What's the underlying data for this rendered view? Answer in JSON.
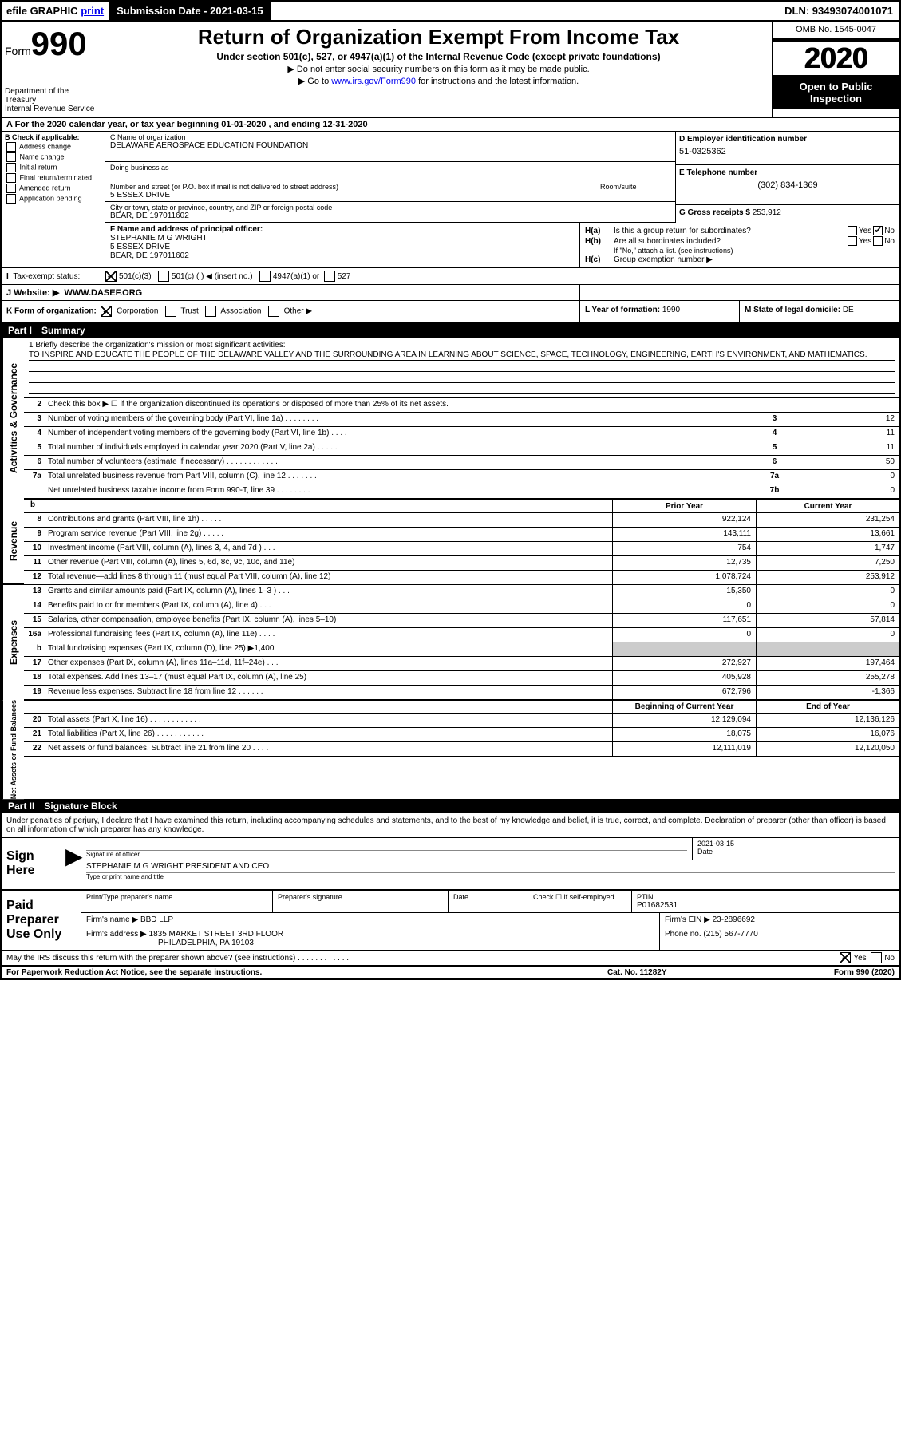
{
  "topbar": {
    "efile": "efile GRAPHIC",
    "print": "print",
    "submission": "Submission Date - 2021-03-15",
    "dln": "DLN: 93493074001071"
  },
  "header": {
    "form_prefix": "Form",
    "form_num": "990",
    "dept": "Department of the Treasury",
    "irs": "Internal Revenue Service",
    "title": "Return of Organization Exempt From Income Tax",
    "sub": "Under section 501(c), 527, or 4947(a)(1) of the Internal Revenue Code (except private foundations)",
    "instr1": "▶ Do not enter social security numbers on this form as it may be made public.",
    "instr2_pre": "▶ Go to ",
    "instr2_link": "www.irs.gov/Form990",
    "instr2_post": " for instructions and the latest information.",
    "omb": "OMB No. 1545-0047",
    "year": "2020",
    "inspection": "Open to Public Inspection"
  },
  "period": "A For the 2020 calendar year, or tax year beginning 01-01-2020    , and ending 12-31-2020",
  "b": {
    "lbl": "B Check if applicable:",
    "opts": [
      "Address change",
      "Name change",
      "Initial return",
      "Final return/terminated",
      "Amended return",
      "Application pending"
    ]
  },
  "c": {
    "name_lbl": "C Name of organization",
    "name": "DELAWARE AEROSPACE EDUCATION FOUNDATION",
    "dba_lbl": "Doing business as",
    "addr_lbl": "Number and street (or P.O. box if mail is not delivered to street address)",
    "addr": "5 ESSEX DRIVE",
    "room_lbl": "Room/suite",
    "city_lbl": "City or town, state or province, country, and ZIP or foreign postal code",
    "city": "BEAR, DE  197011602"
  },
  "d": {
    "lbl": "D Employer identification number",
    "val": "51-0325362"
  },
  "e": {
    "lbl": "E Telephone number",
    "val": "(302) 834-1369"
  },
  "g": {
    "lbl": "G Gross receipts $",
    "val": "253,912"
  },
  "f": {
    "lbl": "F Name and address of principal officer:",
    "name": "STEPHANIE M G WRIGHT",
    "addr1": "5 ESSEX DRIVE",
    "addr2": "BEAR, DE  197011602"
  },
  "h": {
    "a": "Is this a group return for subordinates?",
    "b": "Are all subordinates included?",
    "b_note": "If \"No,\" attach a list. (see instructions)",
    "c": "Group exemption number ▶"
  },
  "i": {
    "lbl": "Tax-exempt status:",
    "opts": [
      "501(c)(3)",
      "501(c) (  ) ◀ (insert no.)",
      "4947(a)(1) or",
      "527"
    ]
  },
  "j": {
    "lbl": "J  Website: ▶",
    "val": "WWW.DASEF.ORG"
  },
  "k": {
    "lbl": "K Form of organization:",
    "opts": [
      "Corporation",
      "Trust",
      "Association",
      "Other ▶"
    ]
  },
  "l": {
    "lbl": "L Year of formation:",
    "val": "1990"
  },
  "m": {
    "lbl": "M State of legal domicile:",
    "val": "DE"
  },
  "part1": {
    "num": "Part I",
    "title": "Summary",
    "mission_lbl": "1  Briefly describe the organization's mission or most significant activities:",
    "mission": "TO INSPIRE AND EDUCATE THE PEOPLE OF THE DELAWARE VALLEY AND THE SURROUNDING AREA IN LEARNING ABOUT SCIENCE, SPACE, TECHNOLOGY, ENGINEERING, EARTH'S ENVIRONMENT, AND MATHEMATICS.",
    "line2": "Check this box ▶ ☐  if the organization discontinued its operations or disposed of more than 25% of its net assets.",
    "gov_lines": [
      {
        "n": "3",
        "t": "Number of voting members of the governing body (Part VI, line 1a)   .    .    .    .    .    .    .    .",
        "box": "3",
        "v": "12"
      },
      {
        "n": "4",
        "t": "Number of independent voting members of the governing body (Part VI, line 1b)   .    .    .    .",
        "box": "4",
        "v": "11"
      },
      {
        "n": "5",
        "t": "Total number of individuals employed in calendar year 2020 (Part V, line 2a)   .    .    .    .    .",
        "box": "5",
        "v": "11"
      },
      {
        "n": "6",
        "t": "Total number of volunteers (estimate if necessary)    .    .    .    .    .    .    .    .    .    .    .    .",
        "box": "6",
        "v": "50"
      },
      {
        "n": "7a",
        "t": "Total unrelated business revenue from Part VIII, column (C), line 12   .    .    .    .    .    .    .",
        "box": "7a",
        "v": "0"
      },
      {
        "n": "",
        "t": "Net unrelated business taxable income from Form 990-T, line 39    .    .    .    .    .    .    .    .",
        "box": "7b",
        "v": "0"
      }
    ],
    "prior_hdr": "Prior Year",
    "current_hdr": "Current Year",
    "rev_lines": [
      {
        "n": "8",
        "t": "Contributions and grants (Part VIII, line 1h)    .    .    .    .    .",
        "v1": "922,124",
        "v2": "231,254"
      },
      {
        "n": "9",
        "t": "Program service revenue (Part VIII, line 2g)    .    .    .    .    .",
        "v1": "143,111",
        "v2": "13,661"
      },
      {
        "n": "10",
        "t": "Investment income (Part VIII, column (A), lines 3, 4, and 7d )    .    .    .",
        "v1": "754",
        "v2": "1,747"
      },
      {
        "n": "11",
        "t": "Other revenue (Part VIII, column (A), lines 5, 6d, 8c, 9c, 10c, and 11e)",
        "v1": "12,735",
        "v2": "7,250"
      },
      {
        "n": "12",
        "t": "Total revenue—add lines 8 through 11 (must equal Part VIII, column (A), line 12)",
        "v1": "1,078,724",
        "v2": "253,912"
      }
    ],
    "exp_lines": [
      {
        "n": "13",
        "t": "Grants and similar amounts paid (Part IX, column (A), lines 1–3 )   .    .    .",
        "v1": "15,350",
        "v2": "0"
      },
      {
        "n": "14",
        "t": "Benefits paid to or for members (Part IX, column (A), line 4)    .    .    .",
        "v1": "0",
        "v2": "0"
      },
      {
        "n": "15",
        "t": "Salaries, other compensation, employee benefits (Part IX, column (A), lines 5–10)",
        "v1": "117,651",
        "v2": "57,814"
      },
      {
        "n": "16a",
        "t": "Professional fundraising fees (Part IX, column (A), line 11e)    .    .    .    .",
        "v1": "0",
        "v2": "0"
      },
      {
        "n": "b",
        "t": "Total fundraising expenses (Part IX, column (D), line 25) ▶1,400",
        "v1": "shaded",
        "v2": "shaded"
      },
      {
        "n": "17",
        "t": "Other expenses (Part IX, column (A), lines 11a–11d, 11f–24e)    .    .    .",
        "v1": "272,927",
        "v2": "197,464"
      },
      {
        "n": "18",
        "t": "Total expenses. Add lines 13–17 (must equal Part IX, column (A), line 25)",
        "v1": "405,928",
        "v2": "255,278"
      },
      {
        "n": "19",
        "t": "Revenue less expenses. Subtract line 18 from line 12   .    .    .    .    .    .",
        "v1": "672,796",
        "v2": "-1,366"
      }
    ],
    "na_hdr1": "Beginning of Current Year",
    "na_hdr2": "End of Year",
    "na_lines": [
      {
        "n": "20",
        "t": "Total assets (Part X, line 16)   .    .    .    .    .    .    .    .    .    .    .    .",
        "v1": "12,129,094",
        "v2": "12,136,126"
      },
      {
        "n": "21",
        "t": "Total liabilities (Part X, line 26)   .    .    .    .    .    .    .    .    .    .    .",
        "v1": "18,075",
        "v2": "16,076"
      },
      {
        "n": "22",
        "t": "Net assets or fund balances. Subtract line 21 from line 20    .    .    .    .",
        "v1": "12,111,019",
        "v2": "12,120,050"
      }
    ]
  },
  "part2": {
    "num": "Part II",
    "title": "Signature Block",
    "intro": "Under penalties of perjury, I declare that I have examined this return, including accompanying schedules and statements, and to the best of my knowledge and belief, it is true, correct, and complete. Declaration of preparer (other than officer) is based on all information of which preparer has any knowledge.",
    "sign_here": "Sign Here",
    "sig_officer": "Signature of officer",
    "sig_date": "2021-03-15",
    "date_lbl": "Date",
    "sig_name": "STEPHANIE M G WRIGHT  PRESIDENT AND CEO",
    "sig_type": "Type or print name and title",
    "paid": "Paid Preparer Use Only",
    "prep_name_lbl": "Print/Type preparer's name",
    "prep_sig_lbl": "Preparer's signature",
    "prep_date_lbl": "Date",
    "prep_check": "Check ☐ if self-employed",
    "ptin_lbl": "PTIN",
    "ptin": "P01682531",
    "firm_name_lbl": "Firm's name    ▶",
    "firm_name": "BBD LLP",
    "firm_ein_lbl": "Firm's EIN ▶",
    "firm_ein": "23-2896692",
    "firm_addr_lbl": "Firm's address ▶",
    "firm_addr1": "1835 MARKET STREET 3RD FLOOR",
    "firm_addr2": "PHILADELPHIA, PA  19103",
    "phone_lbl": "Phone no.",
    "phone": "(215) 567-7770",
    "discuss": "May the IRS discuss this return with the preparer shown above? (see instructions)    .    .    .    .    .    .    .    .    .    .    .    ."
  },
  "footer": {
    "l": "For Paperwork Reduction Act Notice, see the separate instructions.",
    "c": "Cat. No. 11282Y",
    "r": "Form 990 (2020)"
  },
  "sides": {
    "gov": "Activities & Governance",
    "rev": "Revenue",
    "exp": "Expenses",
    "na": "Net Assets or Fund Balances"
  }
}
